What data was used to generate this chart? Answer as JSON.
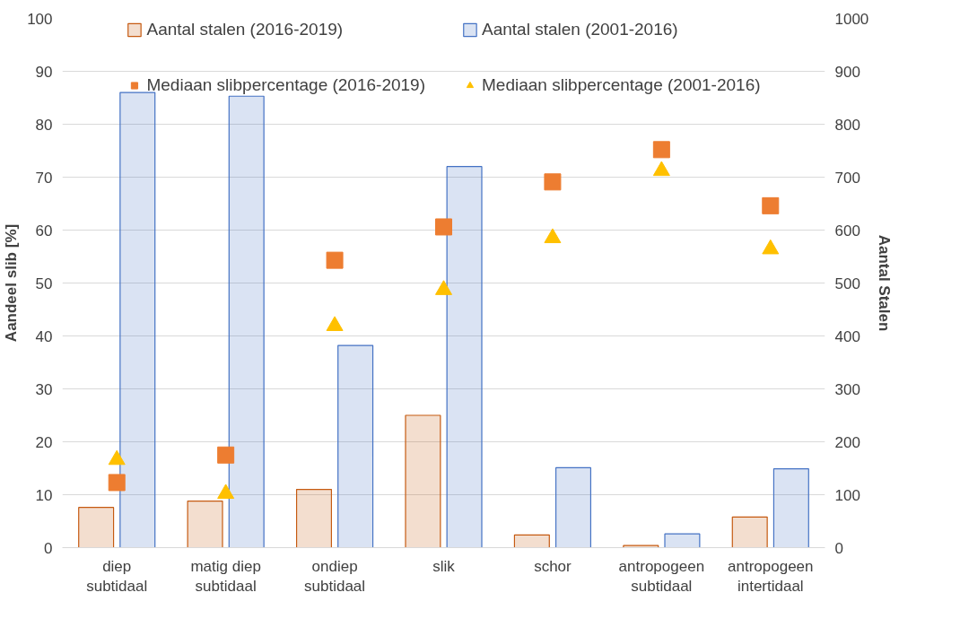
{
  "chart_data": {
    "type": "bar",
    "ylabel": "Aandeel slib [%]",
    "y2label": "Aantal Stalen",
    "categories": [
      "diep\nsubtidaal",
      "matig diep\nsubtidaal",
      "ondiep\nsubtidaal",
      "slik",
      "schor",
      "antropogeen\nsubtidaal",
      "antropogeen\nintertidaal"
    ],
    "series": [
      {
        "name": "Aantal stalen (2016-2019)",
        "axis": "y2",
        "color": "#c55a11",
        "values": [
          76,
          88,
          110,
          250,
          24,
          4,
          58
        ]
      },
      {
        "name": "Aantal stalen (2001-2016)",
        "axis": "y2",
        "color": "#4472c4",
        "values": [
          860,
          853,
          382,
          720,
          151,
          26,
          149
        ]
      },
      {
        "name": "Mediaan slibpercentage (2016-2019)",
        "type": "scatter",
        "marker": "square",
        "color": "#ed7d31",
        "values": [
          12.3,
          17.5,
          54.3,
          60.6,
          69.1,
          75.2,
          64.6
        ]
      },
      {
        "name": "Mediaan slibpercentage (2001-2016)",
        "type": "scatter",
        "marker": "triangle",
        "color": "#ffc000",
        "values": [
          16.6,
          10.2,
          41.9,
          48.7,
          58.5,
          71.2,
          56.4
        ]
      }
    ],
    "ylim": [
      0,
      100
    ],
    "yticks": [
      0,
      10,
      20,
      30,
      40,
      50,
      60,
      70,
      80,
      90,
      100
    ],
    "y2lim": [
      0,
      1000
    ],
    "y2ticks": [
      0,
      100,
      200,
      300,
      400,
      500,
      600,
      700,
      800,
      900,
      1000
    ],
    "grid": "y",
    "legend": "top"
  }
}
